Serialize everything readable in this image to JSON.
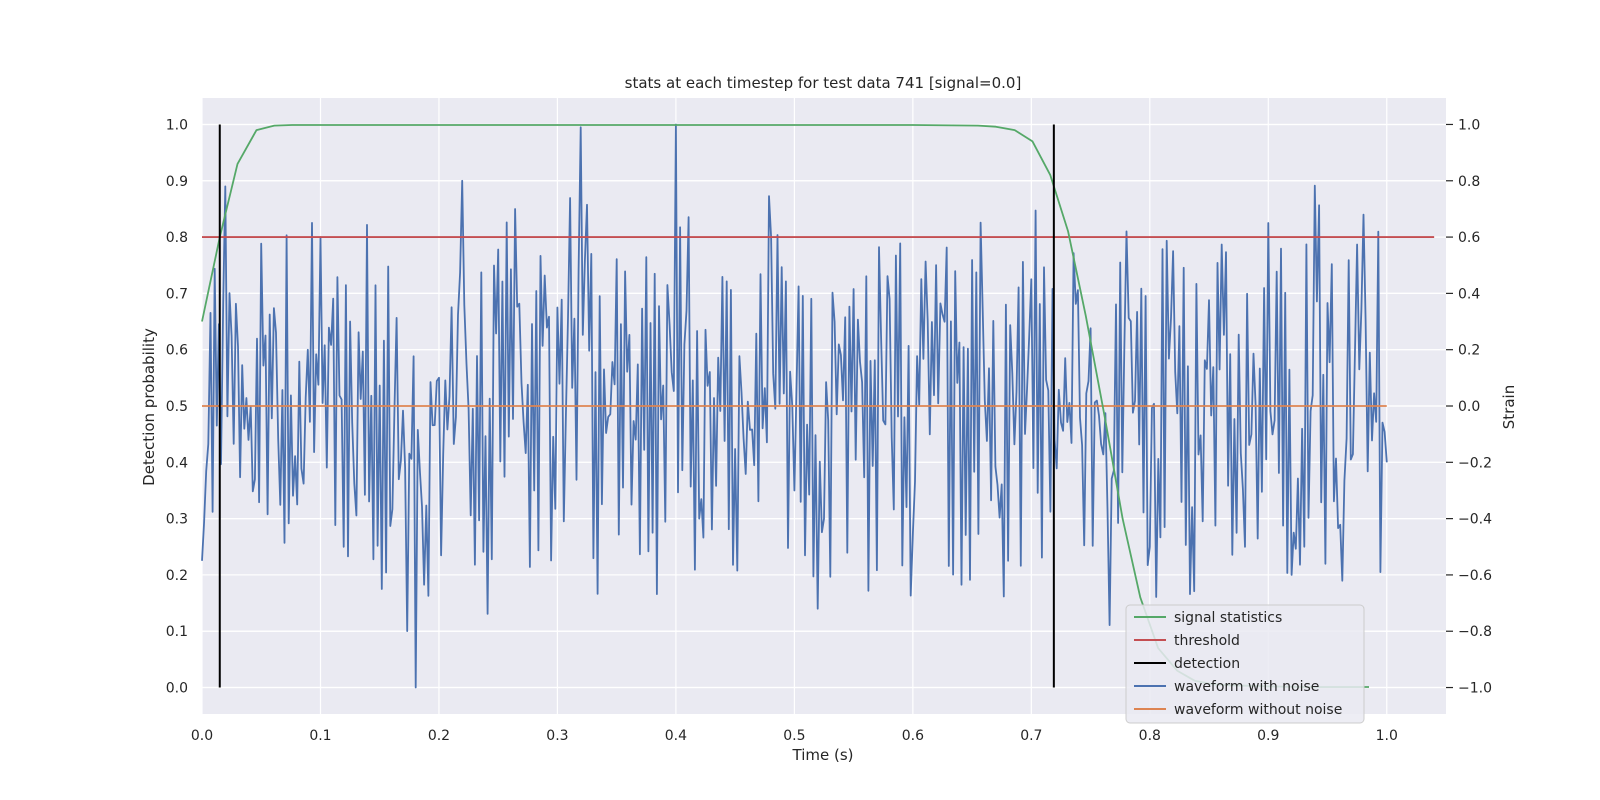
{
  "chart_data": {
    "type": "line",
    "title": "stats at each timestep for test data 741 [signal=0.0]",
    "xlabel": "Time (s)",
    "ylabel": "Detection probability",
    "y2label": "Strain",
    "xlim": [
      0.0,
      1.05
    ],
    "ylim": [
      -0.047,
      1.047
    ],
    "y2lim": [
      -1.094,
      1.094
    ],
    "xticks": [
      0.0,
      0.1,
      0.2,
      0.3,
      0.4,
      0.5,
      0.6,
      0.7,
      0.8,
      0.9,
      1.0
    ],
    "xtick_labels": [
      "0.0",
      "0.1",
      "0.2",
      "0.3",
      "0.4",
      "0.5",
      "0.6",
      "0.7",
      "0.8",
      "0.9",
      "1.0"
    ],
    "yticks": [
      0.0,
      0.1,
      0.2,
      0.3,
      0.4,
      0.5,
      0.6,
      0.7,
      0.8,
      0.9,
      1.0
    ],
    "ytick_labels": [
      "0.0",
      "0.1",
      "0.2",
      "0.3",
      "0.4",
      "0.5",
      "0.6",
      "0.7",
      "0.8",
      "0.9",
      "1.0"
    ],
    "y2ticks": [
      -1.0,
      -0.8,
      -0.6,
      -0.4,
      -0.2,
      0.0,
      0.2,
      0.4,
      0.6,
      0.8,
      1.0
    ],
    "y2tick_labels": [
      "−1.0",
      "−0.8",
      "−0.6",
      "−0.4",
      "−0.2",
      "0.0",
      "0.2",
      "0.4",
      "0.6",
      "0.8",
      "1.0"
    ],
    "grid": true,
    "legend_position": "lower-right",
    "colors": {
      "background": "#eaeaf2",
      "grid": "#ffffff",
      "signal_statistics": "#55a868",
      "threshold": "#c44e52",
      "detection": "#000000",
      "waveform_with_noise": "#4c72b0",
      "waveform_without_noise": "#dd8452"
    },
    "series": [
      {
        "name": "signal statistics",
        "axis": "left",
        "x": [
          0.0,
          0.015,
          0.03,
          0.046,
          0.061,
          0.076,
          0.1,
          0.2,
          0.3,
          0.4,
          0.5,
          0.6,
          0.655,
          0.67,
          0.686,
          0.701,
          0.716,
          0.731,
          0.746,
          0.762,
          0.777,
          0.792,
          0.807,
          0.823,
          0.838,
          0.853,
          0.868,
          0.884,
          0.9,
          0.93,
          0.96,
          0.985
        ],
        "y": [
          0.65,
          0.8,
          0.93,
          0.99,
          0.998,
          0.999,
          0.999,
          0.999,
          0.999,
          0.999,
          0.999,
          0.999,
          0.998,
          0.996,
          0.99,
          0.97,
          0.91,
          0.81,
          0.66,
          0.48,
          0.3,
          0.16,
          0.07,
          0.03,
          0.012,
          0.006,
          0.004,
          0.003,
          0.002,
          0.001,
          0.001,
          0.001
        ]
      },
      {
        "name": "threshold",
        "axis": "left",
        "x": [
          0.0,
          1.04
        ],
        "y": [
          0.8,
          0.8
        ]
      },
      {
        "name": "detection",
        "axis": "left",
        "events": [
          0.015,
          0.719
        ],
        "y": [
          0.0,
          1.0
        ]
      },
      {
        "name": "waveform with noise",
        "axis": "right",
        "x": [
          0.0,
          0.02,
          0.04,
          0.06,
          0.08,
          0.1,
          0.12,
          0.14,
          0.16,
          0.18,
          0.2,
          0.22,
          0.24,
          0.26,
          0.28,
          0.3,
          0.32,
          0.34,
          0.36,
          0.38,
          0.4,
          0.42,
          0.44,
          0.46,
          0.48,
          0.5,
          0.52,
          0.54,
          0.56,
          0.58,
          0.6,
          0.62,
          0.64,
          0.66,
          0.68,
          0.7,
          0.72,
          0.74,
          0.76,
          0.78,
          0.8,
          0.82,
          0.84,
          0.86,
          0.88,
          0.9,
          0.92,
          0.94,
          0.96,
          0.98,
          1.0
        ],
        "y": [
          -0.55,
          0.78,
          -0.8,
          0.57,
          -0.35,
          0.6,
          -0.5,
          0.45,
          -0.45,
          -1.0,
          0.1,
          0.8,
          -0.4,
          0.57,
          -0.3,
          0.35,
          0.99,
          -0.65,
          0.35,
          -0.45,
          1.0,
          -0.4,
          0.6,
          -0.55,
          0.6,
          -0.3,
          -0.72,
          0.5,
          -0.5,
          0.38,
          -0.45,
          0.5,
          -0.48,
          0.62,
          -0.55,
          0.45,
          -0.12,
          0.55,
          -0.88,
          0.62,
          -0.5,
          0.55,
          -0.6,
          0.45,
          -0.5,
          0.65,
          -0.6,
          0.55,
          -0.65,
          0.68,
          -0.2
        ]
      },
      {
        "name": "waveform without noise",
        "axis": "right",
        "x": [
          0.0,
          1.0
        ],
        "y": [
          0.0,
          0.0
        ]
      }
    ]
  }
}
